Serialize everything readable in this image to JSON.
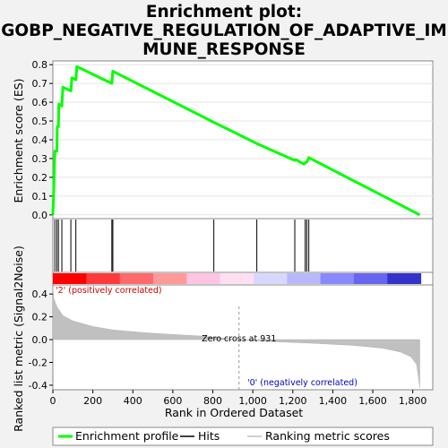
{
  "chart_data": {
    "type": "line",
    "title_line1": "Enrichment plot:",
    "title_line2": "GOBP_NEGATIVE_REGULATION_OF_ADAPTIVE_IM",
    "title_line3": "MUNE_RESPONSE",
    "es_panel": {
      "ylabel": "Enrichment score (ES)",
      "ylim": [
        -0.02,
        0.82
      ],
      "yticks": [
        "0.0",
        "0.1",
        "0.2",
        "0.3",
        "0.4",
        "0.5",
        "0.6",
        "0.7",
        "0.8"
      ],
      "ytick_values": [
        0.0,
        0.1,
        0.2,
        0.3,
        0.4,
        0.5,
        0.6,
        0.7,
        0.8
      ],
      "line_color": "#00ff00",
      "points": [
        [
          0,
          0.0
        ],
        [
          5,
          0.15
        ],
        [
          10,
          0.34
        ],
        [
          20,
          0.34
        ],
        [
          22,
          0.47
        ],
        [
          28,
          0.47
        ],
        [
          30,
          0.59
        ],
        [
          45,
          0.58
        ],
        [
          50,
          0.68
        ],
        [
          90,
          0.66
        ],
        [
          95,
          0.73
        ],
        [
          115,
          0.72
        ],
        [
          120,
          0.79
        ],
        [
          295,
          0.7
        ],
        [
          300,
          0.765
        ],
        [
          810,
          0.49
        ],
        [
          1020,
          0.38
        ],
        [
          1210,
          0.29
        ],
        [
          1215,
          0.295
        ],
        [
          1255,
          0.27
        ],
        [
          1265,
          0.28
        ],
        [
          1270,
          0.28
        ],
        [
          1280,
          0.305
        ],
        [
          1835,
          0.0
        ]
      ]
    },
    "hits": {
      "positions": [
        10,
        20,
        28,
        45,
        90,
        115,
        295,
        300,
        805,
        1020,
        1210,
        1262,
        1270,
        1280
      ],
      "color": "#000000"
    },
    "ranking_bar": {
      "colors": [
        "#ff0000",
        "#ff3a3a",
        "#ff6a6a",
        "#ff9999",
        "#ffc4e0",
        "#ffe0f0",
        "#d8d8ff",
        "#b8b8ff",
        "#8888ff",
        "#6666ee",
        "#3333cc"
      ]
    },
    "metric_panel": {
      "ylabel": "Ranked list metric (Signal2Noise)",
      "xlabel": "Rank in Ordered Dataset",
      "ylim": [
        -0.44,
        0.48
      ],
      "yticks": [
        "0.4",
        "0.2",
        "0.0",
        "-0.2",
        "-0.4"
      ],
      "ytick_values": [
        0.4,
        0.2,
        0.0,
        -0.2,
        -0.4
      ],
      "xlim": [
        0,
        1900
      ],
      "xticks": [
        "0",
        "200",
        "400",
        "600",
        "800",
        "1,000",
        "1,200",
        "1,400",
        "1,600",
        "1,800"
      ],
      "xtick_values": [
        0,
        200,
        400,
        600,
        800,
        1000,
        1200,
        1400,
        1600,
        1800
      ],
      "fill_color": "#c0c0c0",
      "curve": [
        [
          0,
          0.46
        ],
        [
          5,
          0.36
        ],
        [
          20,
          0.29
        ],
        [
          50,
          0.21
        ],
        [
          100,
          0.165
        ],
        [
          200,
          0.115
        ],
        [
          300,
          0.085
        ],
        [
          450,
          0.062
        ],
        [
          600,
          0.045
        ],
        [
          750,
          0.03
        ],
        [
          931,
          0.0
        ],
        [
          1100,
          -0.018
        ],
        [
          1300,
          -0.032
        ],
        [
          1500,
          -0.05
        ],
        [
          1650,
          -0.075
        ],
        [
          1740,
          -0.11
        ],
        [
          1790,
          -0.15
        ],
        [
          1820,
          -0.22
        ],
        [
          1835,
          -0.42
        ]
      ],
      "zero_cross_label": "Zero cross at 931",
      "zero_cross_value": 931,
      "positive_label": "'2' (positively correlated)",
      "positive_color": "#cc0000",
      "negative_label": "'0' (negatively correlated)",
      "negative_color": "#0000cc"
    },
    "legend": {
      "items": [
        {
          "label": "Enrichment profile",
          "color": "#00ff00"
        },
        {
          "label": "Hits",
          "color": "#000000"
        },
        {
          "label": "Ranking metric scores",
          "color": "#c0c0c0"
        }
      ]
    }
  }
}
